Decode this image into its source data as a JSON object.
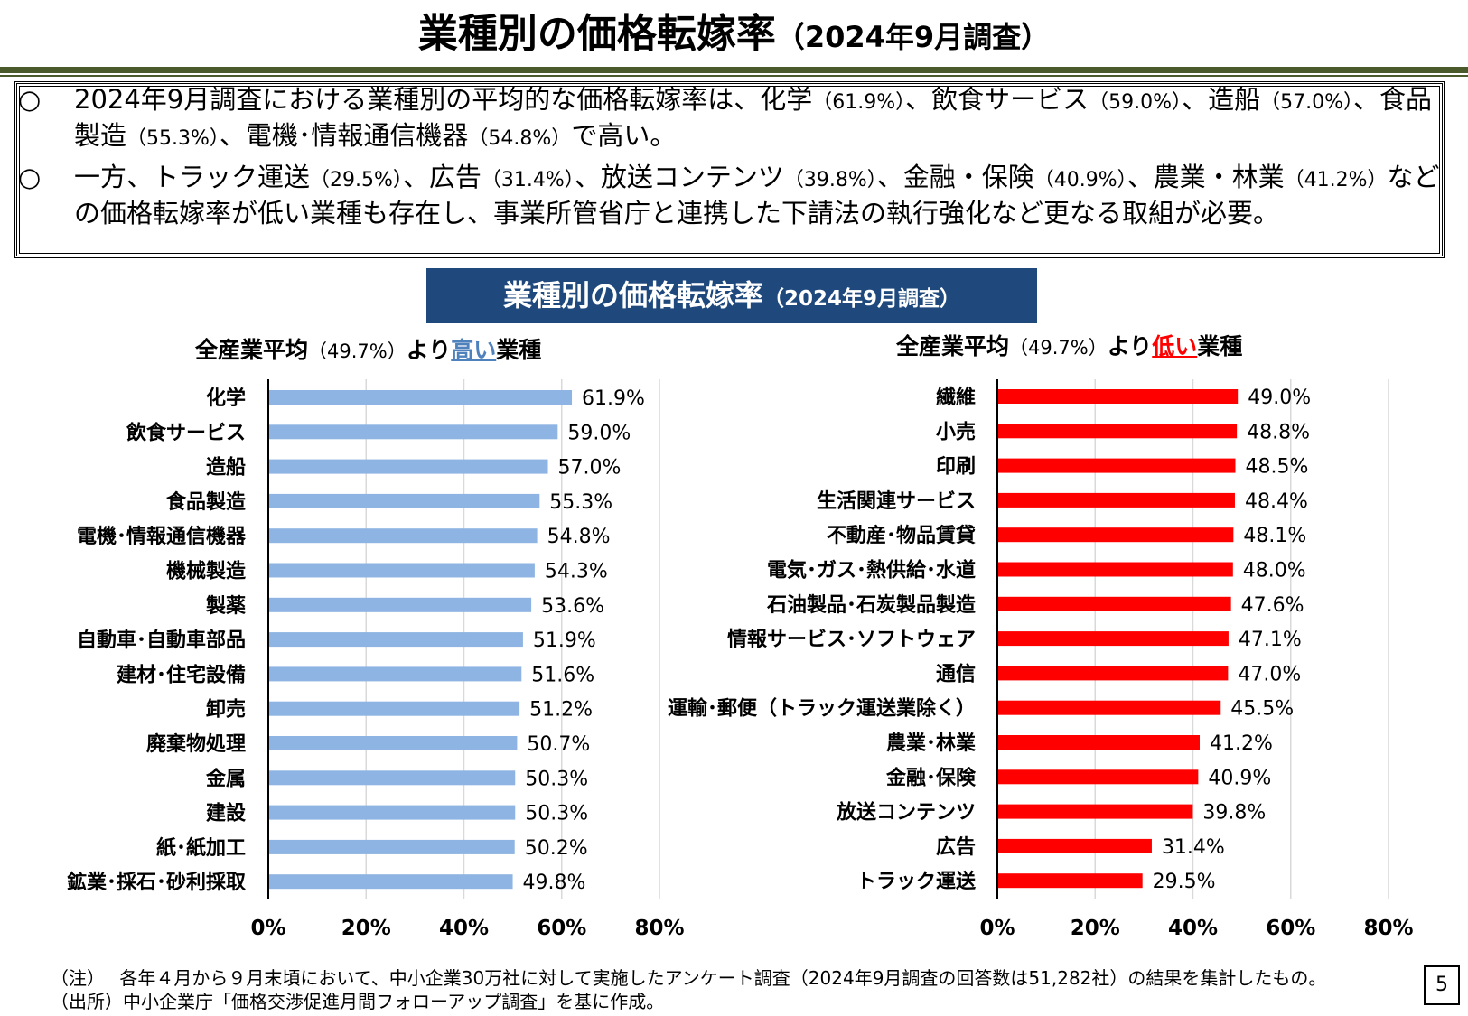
{
  "page": {
    "title_main": "業種別の価格転嫁率",
    "title_sub": "（2024年9月調査）",
    "page_number": "5"
  },
  "summary": {
    "bullet_mark": "○",
    "b1": {
      "t1": "2024年9月調査における業種別の平均的な価格転嫁率は、化学",
      "p1": "（61.9%）",
      "t2": "、飲食サービス",
      "p2": "（59.0%）",
      "t3": "、造船",
      "p3": "（57.0%）",
      "t4": "、食品製造",
      "p4": "（55.3%）",
      "t5": "、電機･情報通信機器",
      "p5": "（54.8%）",
      "t6": "で高い。"
    },
    "b2": {
      "t1": "一方、トラック運送",
      "p1": "（29.5%）",
      "t2": "、広告",
      "p2": "（31.4%）",
      "t3": "、放送コンテンツ",
      "p3": "（39.8%）",
      "t4": "、金融・保険",
      "p4": "（40.9%）",
      "t5": "、農業・林業",
      "p5": "（41.2%）",
      "t6": "などの価格転嫁率が低い業種も存在し、事業所管省庁と連携した下請法の執行強化など更なる取組が必要。"
    }
  },
  "banner": {
    "main": "業種別の価格転嫁率",
    "sub": "（2024年9月調査）"
  },
  "colors": {
    "high_bar": "#8db4e2",
    "low_bar": "#ff0000",
    "banner_bg": "#1f497d",
    "high_word": "#4f81bd",
    "low_word": "#ff0000",
    "grid": "#d9d9d9"
  },
  "chart_data": [
    {
      "type": "bar",
      "orientation": "horizontal",
      "header": {
        "a": "全産業平均",
        "b": "（49.7%）",
        "c": "より",
        "d": "高い",
        "e": "業種"
      },
      "categories": [
        "化学",
        "飲食サービス",
        "造船",
        "食品製造",
        "電機･情報通信機器",
        "機械製造",
        "製薬",
        "自動車･自動車部品",
        "建材･住宅設備",
        "卸売",
        "廃棄物処理",
        "金属",
        "建設",
        "紙･紙加工",
        "鉱業･採石･砂利採取"
      ],
      "values": [
        61.9,
        59.0,
        57.0,
        55.3,
        54.8,
        54.3,
        53.6,
        51.9,
        51.6,
        51.2,
        50.7,
        50.3,
        50.3,
        50.2,
        49.8
      ],
      "labels": [
        "61.9%",
        "59.0%",
        "57.0%",
        "55.3%",
        "54.8%",
        "54.3%",
        "53.6%",
        "51.9%",
        "51.6%",
        "51.2%",
        "50.7%",
        "50.3%",
        "50.3%",
        "50.2%",
        "49.8%"
      ],
      "xlim": [
        0,
        80
      ],
      "ticks": [
        "0%",
        "20%",
        "40%",
        "60%",
        "80%"
      ],
      "grid": true
    },
    {
      "type": "bar",
      "orientation": "horizontal",
      "header": {
        "a": "全産業平均",
        "b": "（49.7%）",
        "c": "より",
        "d": "低い",
        "e": "業種"
      },
      "categories": [
        "繊維",
        "小売",
        "印刷",
        "生活関連サービス",
        "不動産･物品賃貸",
        "電気･ガス･熱供給･水道",
        "石油製品･石炭製品製造",
        "情報サービス･ソフトウェア",
        "通信",
        "運輸･郵便（トラック運送業除く）",
        "農業･林業",
        "金融･保険",
        "放送コンテンツ",
        "広告",
        "トラック運送"
      ],
      "values": [
        49.0,
        48.8,
        48.5,
        48.4,
        48.1,
        48.0,
        47.6,
        47.1,
        47.0,
        45.5,
        41.2,
        40.9,
        39.8,
        31.4,
        29.5
      ],
      "labels": [
        "49.0%",
        "48.8%",
        "48.5%",
        "48.4%",
        "48.1%",
        "48.0%",
        "47.6%",
        "47.1%",
        "47.0%",
        "45.5%",
        "41.2%",
        "40.9%",
        "39.8%",
        "31.4%",
        "29.5%"
      ],
      "xlim": [
        0,
        80
      ],
      "ticks": [
        "0%",
        "20%",
        "40%",
        "60%",
        "80%"
      ],
      "grid": true
    }
  ],
  "notes": {
    "n1": "（注）　 各年４月から９月末頃において、中小企業30万社に対して実施したアンケート調査（2024年9月調査の回答数は51,282社）の結果を集計したもの。",
    "n2": "（出所）中小企業庁「価格交渉促進月間フォローアップ調査」を基に作成。"
  }
}
